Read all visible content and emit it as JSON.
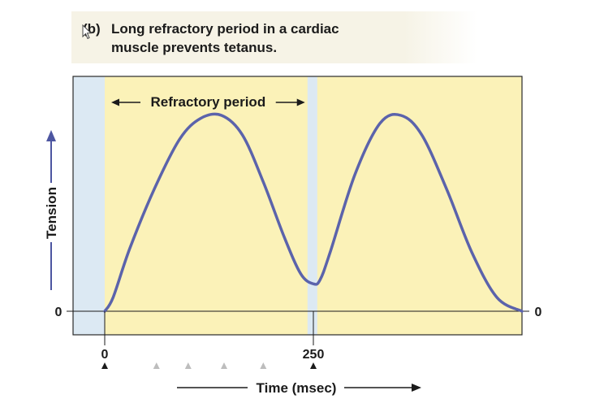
{
  "caption": {
    "tag": "(b)",
    "line1": "Long refractory period in a cardiac",
    "line2": "muscle prevents tetanus."
  },
  "chart_data": {
    "type": "line",
    "title": "(b) Long refractory period in a cardiac muscle prevents tetanus.",
    "xlabel": "Time (msec)",
    "ylabel": "Tension",
    "xlim": [
      0,
      500
    ],
    "x_ticks": [
      0,
      250
    ],
    "y_ticks": [
      0
    ],
    "y_right_label": "0",
    "annotation": "Refractory period",
    "refractory_period": [
      0,
      240
    ],
    "stimulus_markers": [
      0,
      250
    ],
    "faded_markers": [
      62,
      100,
      143,
      190
    ],
    "series": [
      {
        "x": [
          0,
          10,
          30,
          60,
          90,
          115,
          140,
          165,
          190,
          215,
          235,
          250,
          258,
          270,
          300,
          330,
          355,
          380,
          410,
          440,
          470,
          500
        ],
        "y": [
          0,
          0.07,
          0.32,
          0.63,
          0.88,
          0.985,
          1.0,
          0.9,
          0.66,
          0.38,
          0.19,
          0.14,
          0.16,
          0.3,
          0.7,
          0.96,
          1.0,
          0.9,
          0.62,
          0.3,
          0.07,
          0
        ]
      }
    ],
    "colors": {
      "curve": "#5b63ab",
      "plot_bg": "#fbf2b8",
      "refractory_band": "#dce9f3",
      "arrow": "#4d56a1"
    }
  }
}
